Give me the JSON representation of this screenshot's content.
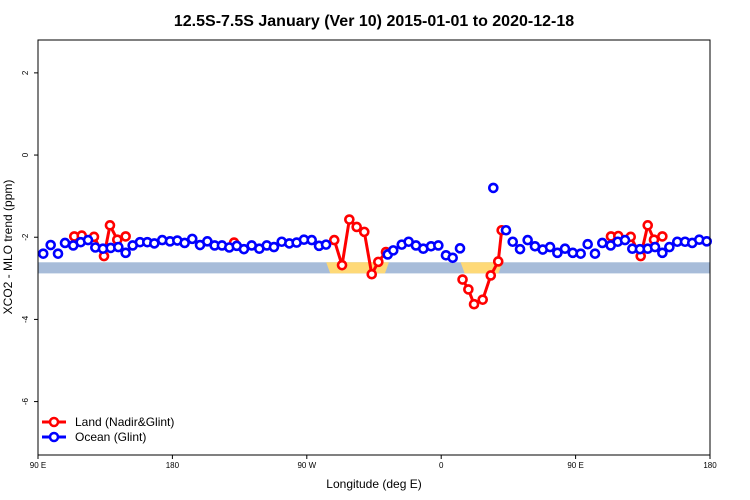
{
  "chart_data": {
    "type": "line",
    "title": "12.5S-7.5S January (Ver 10)   2015-01-01 to 2020-12-18",
    "xlabel": "Longitude (deg E)",
    "ylabel": "XCO2 - MLO trend (ppm)",
    "xlim": [
      90,
      540
    ],
    "ylim": [
      -7.3,
      2.8
    ],
    "x_ticks": [
      {
        "value": 90,
        "label": "90 E"
      },
      {
        "value": 180,
        "label": "180"
      },
      {
        "value": 270,
        "label": "90 W"
      },
      {
        "value": 360,
        "label": "0"
      },
      {
        "value": 450,
        "label": "90 E"
      },
      {
        "value": 540,
        "label": "180"
      }
    ],
    "y_ticks": [
      {
        "value": 2,
        "label": "2"
      },
      {
        "value": 0,
        "label": "0"
      },
      {
        "value": -2,
        "label": "-2"
      },
      {
        "value": -4,
        "label": "-4"
      },
      {
        "value": -6,
        "label": "-6"
      }
    ],
    "grid": false,
    "legend_position": "bottom-left",
    "surface_band": {
      "ymin": -2.88,
      "ymax": -2.61,
      "ocean_color": "#a7bcd9",
      "land_color": "#fed977",
      "land_ranges": [
        [
          283,
          325
        ],
        [
          373,
          401
        ]
      ]
    },
    "series": [
      {
        "name": "Land (Nadir&Glint)",
        "color": "#ff0000",
        "x": [
          114.3,
          119.3,
          127.5,
          134.2,
          138.2,
          143.1,
          148.7,
          221.3,
          288.4,
          293.6,
          298.5,
          303.4,
          308.5,
          313.5,
          317.9,
          323,
          374.3,
          378.2,
          382,
          387.8,
          393.2,
          398.2,
          400.5,
          473.7,
          478.6,
          486.9,
          493.6,
          498.3,
          502.5,
          508.1
        ],
        "y": [
          -1.98,
          -1.96,
          -1.99,
          -2.46,
          -1.71,
          -2.06,
          -1.98,
          -2.13,
          -2.07,
          -2.68,
          -1.57,
          -1.75,
          -1.87,
          -2.9,
          -2.6,
          -2.36,
          -3.03,
          -3.27,
          -3.63,
          -3.52,
          -2.93,
          -2.59,
          -1.83,
          -1.98,
          -1.97,
          -1.99,
          -2.46,
          -1.71,
          -2.06,
          -1.98
        ]
      },
      {
        "name": "Ocean (Glint)",
        "color": "#0000ff",
        "x": [
          93.5,
          98.5,
          103.4,
          108.1,
          113.6,
          118.6,
          123.5,
          128.4,
          133.5,
          138.7,
          143.8,
          148.7,
          153.4,
          158.3,
          163.2,
          167.9,
          173.2,
          178.4,
          183.3,
          188.2,
          193.3,
          198.5,
          203.4,
          208.3,
          213.2,
          218.1,
          223.1,
          227.9,
          233.1,
          238.2,
          243.2,
          248,
          253.2,
          258.3,
          263.2,
          268.1,
          273.3,
          278.2,
          282.9,
          324.2,
          327.9,
          333.6,
          338.2,
          343.1,
          348,
          353.2,
          358.1,
          363.2,
          367.7,
          372.6,
          394.9,
          403.4,
          407.9,
          412.8,
          417.9,
          422.8,
          428,
          432.9,
          437.8,
          442.9,
          448.1,
          453.4,
          458.1,
          463,
          467.9,
          473.5,
          478.2,
          483.1,
          488,
          493.1,
          498.3,
          503.2,
          508.1,
          512.8,
          518.1,
          523.3,
          528.1,
          532.8,
          537.8
        ],
        "y": [
          -2.4,
          -2.19,
          -2.4,
          -2.14,
          -2.2,
          -2.12,
          -2.07,
          -2.25,
          -2.28,
          -2.26,
          -2.24,
          -2.38,
          -2.2,
          -2.12,
          -2.12,
          -2.15,
          -2.07,
          -2.1,
          -2.08,
          -2.14,
          -2.04,
          -2.19,
          -2.1,
          -2.2,
          -2.2,
          -2.25,
          -2.21,
          -2.29,
          -2.2,
          -2.28,
          -2.2,
          -2.24,
          -2.11,
          -2.15,
          -2.13,
          -2.06,
          -2.07,
          -2.21,
          -2.18,
          -2.42,
          -2.32,
          -2.18,
          -2.11,
          -2.2,
          -2.28,
          -2.22,
          -2.2,
          -2.44,
          -2.5,
          -2.27,
          -0.8,
          -1.83,
          -2.11,
          -2.29,
          -2.07,
          -2.22,
          -2.3,
          -2.24,
          -2.38,
          -2.28,
          -2.38,
          -2.4,
          -2.17,
          -2.4,
          -2.14,
          -2.2,
          -2.11,
          -2.07,
          -2.28,
          -2.29,
          -2.28,
          -2.24,
          -2.38,
          -2.24,
          -2.11,
          -2.11,
          -2.14,
          -2.06,
          -2.1
        ]
      }
    ]
  }
}
